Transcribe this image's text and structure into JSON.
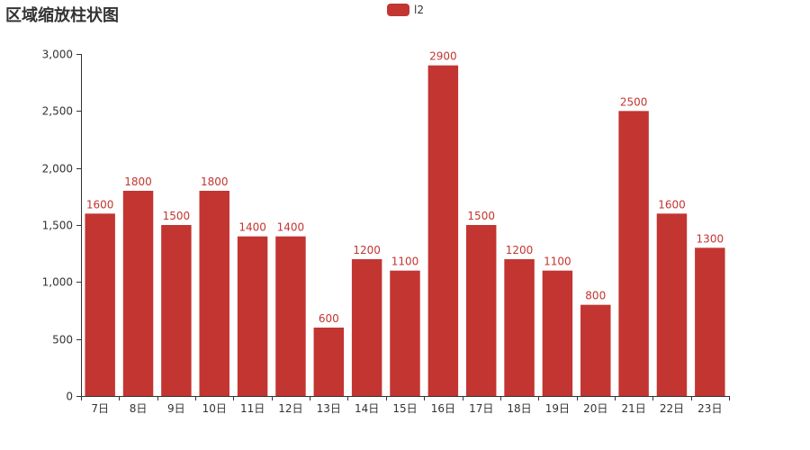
{
  "title": "区域缩放柱状图",
  "legend": {
    "label": "l2",
    "position": "top-center"
  },
  "colors": {
    "bar": "#c23531",
    "axis": "#333333",
    "text": "#333333"
  },
  "chart_data": {
    "type": "bar",
    "title": "区域缩放柱状图",
    "xlabel": "",
    "ylabel": "",
    "categories": [
      "7日",
      "8日",
      "9日",
      "10日",
      "11日",
      "12日",
      "13日",
      "14日",
      "15日",
      "16日",
      "17日",
      "18日",
      "19日",
      "20日",
      "21日",
      "22日",
      "23日"
    ],
    "series": [
      {
        "name": "l2",
        "values": [
          1600,
          1800,
          1500,
          1800,
          1400,
          1400,
          600,
          1200,
          1100,
          2900,
          1500,
          1200,
          1100,
          800,
          2500,
          1600,
          1300
        ]
      }
    ],
    "ylim": [
      0,
      3000
    ],
    "yticks": [
      0,
      500,
      1000,
      1500,
      2000,
      2500,
      3000
    ],
    "ytick_labels": [
      "0",
      "500",
      "1,000",
      "1,500",
      "2,000",
      "2,500",
      "3,000"
    ],
    "grid": false,
    "data_labels": true
  }
}
